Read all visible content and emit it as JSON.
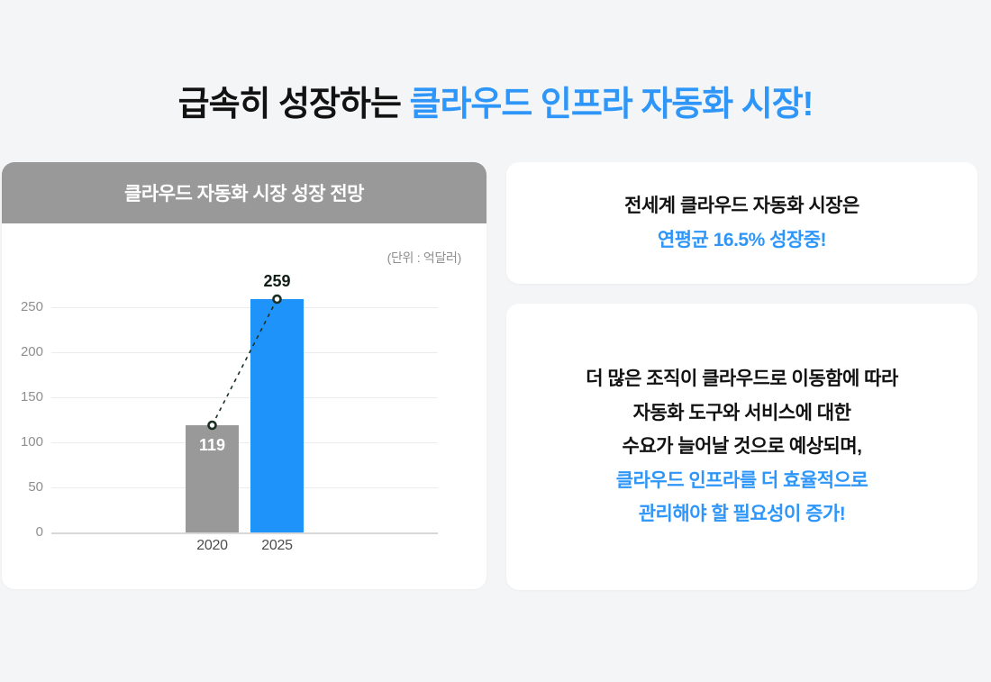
{
  "title": {
    "black": "급속히 성장하는 ",
    "blue": "클라우드 인프라 자동화 시장!"
  },
  "colors": {
    "background": "#F4F5F6",
    "card_bg": "#FFFFFF",
    "accent_blue": "#2E96F8",
    "bar_blue": "#1E94FA",
    "bar_gray": "#999999",
    "header_gray": "#999999",
    "text_dark": "#121212",
    "axis_label_gray": "#8F8F8F",
    "xlabel_gray": "#4D4D4D",
    "grid_color": "#ECECEC",
    "axis_line_color": "#D7D7D7",
    "marker_stroke": "#1C2F24"
  },
  "chart_data": {
    "type": "bar",
    "title": "클라우드 자동화 시장 성장 전망",
    "unit_label": "(단위 : 억달러)",
    "categories": [
      "2020",
      "2025"
    ],
    "values": [
      119,
      259
    ],
    "bar_colors": [
      "#999999",
      "#1E94FA"
    ],
    "value_labels": [
      "119",
      "259"
    ],
    "value_label_positions": [
      "inside",
      "above"
    ],
    "value_label_colors": [
      "#FFFFFF",
      "#101E16"
    ],
    "yticks": [
      0,
      50,
      100,
      150,
      200,
      250
    ],
    "ylim": [
      0,
      265
    ],
    "grid": true,
    "legend": false,
    "trendline": {
      "style": "dashed",
      "markers": true
    }
  },
  "cards": [
    {
      "lines": [
        {
          "text": "전세계 클라우드 자동화 시장은",
          "accent": false
        },
        {
          "text": "연평균 16.5% 성장중!",
          "accent": true
        }
      ]
    },
    {
      "lines": [
        {
          "text": "더 많은 조직이 클라우드로 이동함에 따라",
          "accent": false
        },
        {
          "text": "자동화 도구와 서비스에 대한",
          "accent": false
        },
        {
          "text": "수요가 늘어날 것으로 예상되며,",
          "accent": false
        },
        {
          "text": "클라우드 인프라를 더 효율적으로",
          "accent": true
        },
        {
          "text": "관리해야 할 필요성이 증가!",
          "accent": true
        }
      ]
    }
  ]
}
